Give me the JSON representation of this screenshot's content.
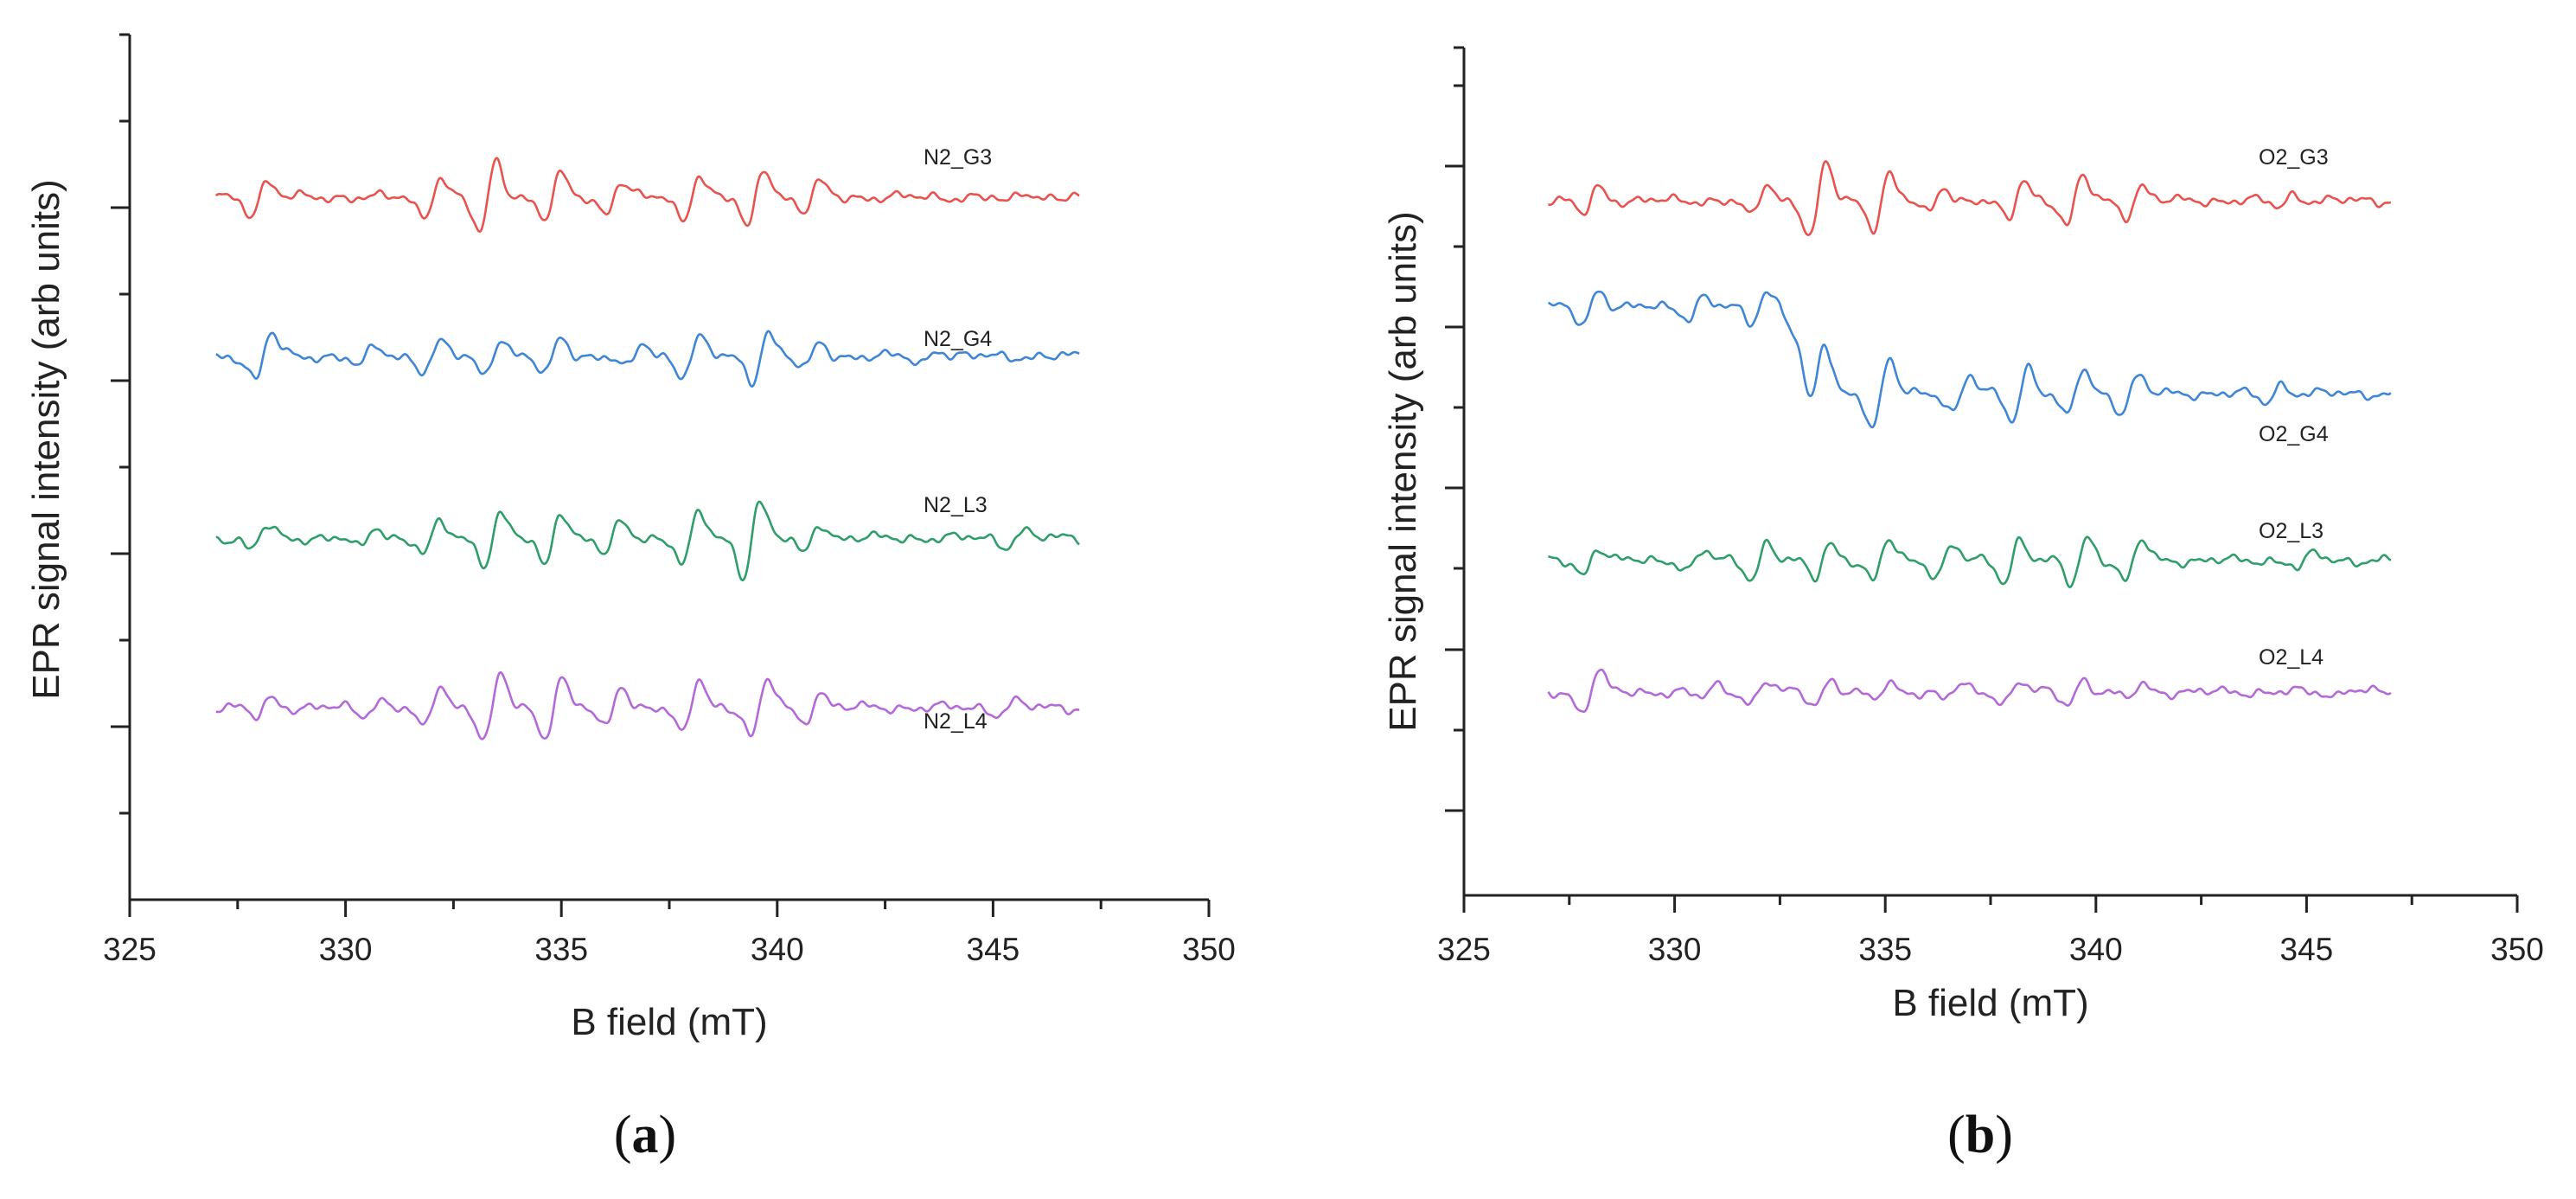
{
  "chart_data": [
    {
      "type": "line",
      "panel_label": "a",
      "xlabel": "B field (mT)",
      "ylabel": "EPR signal intensity (arb units)",
      "xlim": [
        325,
        350
      ],
      "xticks": [
        "325",
        "330",
        "335",
        "340",
        "345",
        "350"
      ],
      "x_range": [
        327,
        347
      ],
      "series": [
        {
          "name": "N2_G3",
          "color": "#e8534f",
          "baseline": 0,
          "peaks": [
            [
              328.0,
              -10
            ],
            [
              332.0,
              -12
            ],
            [
              333.3,
              -24
            ],
            [
              334.8,
              -14
            ],
            [
              336.2,
              -10
            ],
            [
              338.0,
              -14
            ],
            [
              339.5,
              -20
            ],
            [
              340.8,
              -9
            ],
            [
              345.5,
              -4
            ]
          ]
        },
        {
          "name": "N2_G4",
          "color": "#3f86d6",
          "baseline": 0,
          "peaks": [
            [
              328.1,
              -15
            ],
            [
              330.5,
              -6
            ],
            [
              332.0,
              -9
            ],
            [
              333.4,
              -12
            ],
            [
              334.8,
              -12
            ],
            [
              336.7,
              -8
            ],
            [
              338.0,
              -12
            ],
            [
              339.6,
              -16
            ],
            [
              340.8,
              -8
            ],
            [
              343.5,
              -5
            ]
          ]
        },
        {
          "name": "N2_L3",
          "color": "#2f9e6a",
          "baseline": 0,
          "peaks": [
            [
              328.0,
              -8
            ],
            [
              330.5,
              -7
            ],
            [
              332.0,
              -10
            ],
            [
              333.4,
              -16
            ],
            [
              334.8,
              -18
            ],
            [
              336.2,
              -10
            ],
            [
              338.0,
              -16
            ],
            [
              339.4,
              -24
            ],
            [
              340.8,
              -10
            ],
            [
              345.5,
              -5
            ]
          ]
        },
        {
          "name": "N2_L4",
          "color": "#b36ad8",
          "baseline": 0,
          "peaks": [
            [
              328.1,
              -6
            ],
            [
              330.6,
              -5
            ],
            [
              332.0,
              -14
            ],
            [
              333.4,
              -20
            ],
            [
              334.8,
              -20
            ],
            [
              336.2,
              -14
            ],
            [
              338.0,
              -18
            ],
            [
              339.6,
              -18
            ],
            [
              340.8,
              -10
            ],
            [
              345.3,
              -4
            ]
          ]
        }
      ]
    },
    {
      "type": "line",
      "panel_label": "b",
      "xlabel": "B field (mT)",
      "ylabel": "EPR signal intensity (arb units)",
      "xlim": [
        325,
        350
      ],
      "xticks": [
        "325",
        "330",
        "335",
        "340",
        "345",
        "350"
      ],
      "x_range": [
        327,
        347
      ],
      "series": [
        {
          "name": "O2_G3",
          "color": "#e8534f",
          "baseline": 0,
          "peaks": [
            [
              328.0,
              -9
            ],
            [
              332.0,
              -11
            ],
            [
              333.4,
              -24
            ],
            [
              334.9,
              -18
            ],
            [
              336.2,
              -9
            ],
            [
              338.1,
              -14
            ],
            [
              339.5,
              -16
            ],
            [
              340.9,
              -10
            ],
            [
              344.5,
              -4
            ]
          ]
        },
        {
          "name": "O2_G4",
          "color": "#3f86d6",
          "baseline": -40,
          "peaks": [
            [
              328.0,
              -12
            ],
            [
              330.5,
              -7
            ],
            [
              332.0,
              -11
            ],
            [
              333.4,
              -28
            ],
            [
              334.9,
              -22
            ],
            [
              336.8,
              -12
            ],
            [
              338.2,
              -18
            ],
            [
              339.5,
              -16
            ],
            [
              340.8,
              -12
            ],
            [
              344.2,
              -6
            ]
          ]
        },
        {
          "name": "O2_L3",
          "color": "#2f9e6a",
          "baseline": 0,
          "peaks": [
            [
              328.0,
              -9
            ],
            [
              330.5,
              -6
            ],
            [
              332.0,
              -12
            ],
            [
              333.5,
              -12
            ],
            [
              334.9,
              -14
            ],
            [
              336.4,
              -10
            ],
            [
              338.0,
              -14
            ],
            [
              339.6,
              -16
            ],
            [
              340.9,
              -14
            ],
            [
              345.0,
              -5
            ]
          ]
        },
        {
          "name": "O2_L4",
          "color": "#b36ad8",
          "baseline": 0,
          "peaks": [
            [
              328.0,
              -14
            ],
            [
              330.8,
              -4
            ],
            [
              332.0,
              -7
            ],
            [
              333.5,
              -8
            ],
            [
              334.9,
              -6
            ],
            [
              336.6,
              -5
            ],
            [
              338.0,
              -7
            ],
            [
              339.5,
              -8
            ],
            [
              340.9,
              -5
            ],
            [
              345.8,
              -3
            ]
          ]
        }
      ]
    }
  ]
}
